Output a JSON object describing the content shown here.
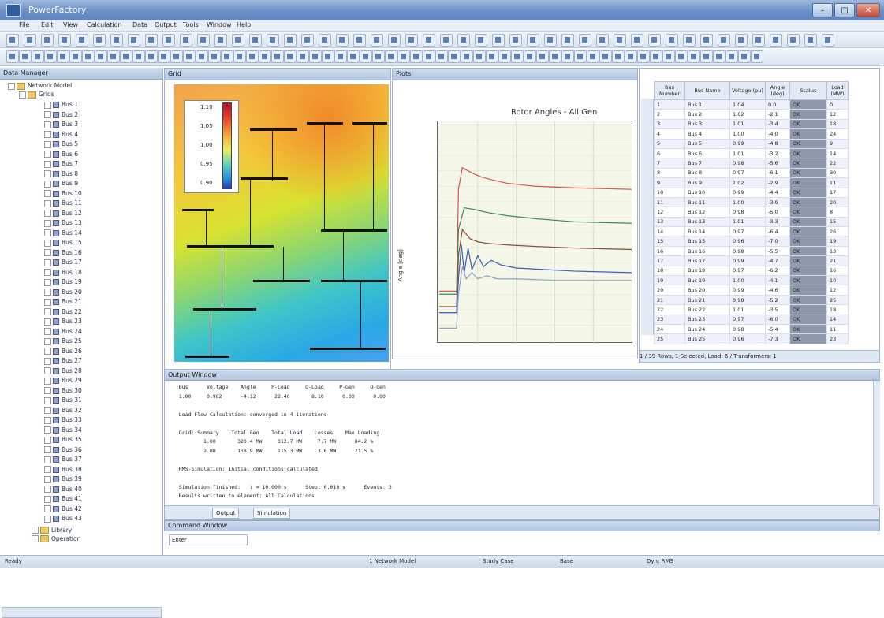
{
  "window": {
    "title": "PowerFactory",
    "minimize": "–",
    "maximize": "□",
    "close": "✕"
  },
  "menu": [
    "File",
    "Edit",
    "View",
    "Calculation",
    "Data",
    "Output",
    "Tools",
    "Window",
    "Help"
  ],
  "left_panel": {
    "title": "Data Manager",
    "root": "Network Model",
    "group": "Grids",
    "items": [
      "Bus 1",
      "Bus 2",
      "Bus 3",
      "Bus 4",
      "Bus 5",
      "Bus 6",
      "Bus 7",
      "Bus 8",
      "Bus 9",
      "Bus 10",
      "Bus 11",
      "Bus 12",
      "Bus 13",
      "Bus 14",
      "Bus 15",
      "Bus 16",
      "Bus 17",
      "Bus 18",
      "Bus 19",
      "Bus 20",
      "Bus 21",
      "Bus 22",
      "Bus 23",
      "Bus 24",
      "Bus 25",
      "Bus 26",
      "Bus 27",
      "Bus 28",
      "Bus 29",
      "Bus 30",
      "Bus 31",
      "Bus 32",
      "Bus 33",
      "Bus 34",
      "Bus 35",
      "Bus 36",
      "Bus 37",
      "Bus 38",
      "Bus 39",
      "Bus 40",
      "Bus 41",
      "Bus 42",
      "Bus 43"
    ],
    "footer_items": [
      "Library",
      "Operation"
    ]
  },
  "diagram": {
    "tab": "Grid",
    "colorbar_ticks": [
      "1.10",
      "1.05",
      "1.00",
      "0.95",
      "0.90"
    ]
  },
  "chart": {
    "tab": "Plots",
    "title": "Rotor Angles - All Gen",
    "ylabel": "Angle [deg]"
  },
  "chart_data": {
    "type": "line",
    "title": "Rotor Angles - All Gen",
    "ylabel": "Angle [deg]",
    "xlabel": "",
    "xlim": [
      0,
      10
    ],
    "ylim": [
      0,
      140
    ],
    "series": [
      {
        "color": "#d9534f",
        "x": [
          0,
          0.9,
          1.0,
          1.2,
          1.5,
          1.8,
          2.2,
          2.8,
          3.5,
          5,
          7,
          10
        ],
        "y": [
          32,
          32,
          98,
          112,
          110,
          108,
          106,
          104,
          102,
          100,
          99,
          98
        ]
      },
      {
        "color": "#3c8a5a",
        "x": [
          0,
          0.9,
          1.0,
          1.3,
          1.8,
          2.5,
          3.5,
          5,
          7,
          10
        ],
        "y": [
          30,
          30,
          72,
          86,
          85,
          83,
          81,
          79,
          77,
          76
        ]
      },
      {
        "color": "#8b4a3a",
        "x": [
          0,
          0.9,
          1.0,
          1.2,
          1.6,
          2.0,
          2.5,
          3.5,
          5,
          7,
          10
        ],
        "y": [
          22,
          22,
          55,
          72,
          66,
          64,
          63,
          62,
          61,
          60,
          59
        ]
      },
      {
        "color": "#3a5fb4",
        "x": [
          0,
          0.9,
          1.0,
          1.15,
          1.3,
          1.5,
          1.7,
          2.0,
          2.3,
          2.7,
          3.2,
          4,
          5.5,
          7,
          10
        ],
        "y": [
          18,
          18,
          40,
          62,
          44,
          60,
          46,
          55,
          48,
          52,
          49,
          47,
          46,
          45,
          44
        ]
      },
      {
        "color": "#8fa0c8",
        "x": [
          0,
          0.9,
          1.0,
          1.2,
          1.4,
          1.7,
          2.0,
          2.5,
          3,
          4,
          6,
          10
        ],
        "y": [
          8,
          8,
          30,
          48,
          40,
          44,
          40,
          42,
          40,
          40,
          39,
          39
        ]
      }
    ]
  },
  "table": {
    "headers": [
      "Bus Number",
      "Bus Name",
      "Voltage (pu)",
      "Angle (deg)",
      "Status",
      "Load (MW)"
    ],
    "rows": [
      [
        "1",
        "Bus 1",
        "1.04",
        "0.0",
        "OK",
        "0"
      ],
      [
        "2",
        "Bus 2",
        "1.02",
        "-2.1",
        "OK",
        "12"
      ],
      [
        "3",
        "Bus 3",
        "1.01",
        "-3.4",
        "OK",
        "18"
      ],
      [
        "4",
        "Bus 4",
        "1.00",
        "-4.0",
        "OK",
        "24"
      ],
      [
        "5",
        "Bus 5",
        "0.99",
        "-4.8",
        "OK",
        "9"
      ],
      [
        "6",
        "Bus 6",
        "1.01",
        "-3.2",
        "OK",
        "14"
      ],
      [
        "7",
        "Bus 7",
        "0.98",
        "-5.6",
        "OK",
        "22"
      ],
      [
        "8",
        "Bus 8",
        "0.97",
        "-6.1",
        "OK",
        "30"
      ],
      [
        "9",
        "Bus 9",
        "1.02",
        "-2.9",
        "OK",
        "11"
      ],
      [
        "10",
        "Bus 10",
        "0.99",
        "-4.4",
        "OK",
        "17"
      ],
      [
        "11",
        "Bus 11",
        "1.00",
        "-3.9",
        "OK",
        "20"
      ],
      [
        "12",
        "Bus 12",
        "0.98",
        "-5.0",
        "OK",
        "8"
      ],
      [
        "13",
        "Bus 13",
        "1.01",
        "-3.3",
        "OK",
        "15"
      ],
      [
        "14",
        "Bus 14",
        "0.97",
        "-6.4",
        "OK",
        "26"
      ],
      [
        "15",
        "Bus 15",
        "0.96",
        "-7.0",
        "OK",
        "19"
      ],
      [
        "16",
        "Bus 16",
        "0.98",
        "-5.5",
        "OK",
        "13"
      ],
      [
        "17",
        "Bus 17",
        "0.99",
        "-4.7",
        "OK",
        "21"
      ],
      [
        "18",
        "Bus 18",
        "0.97",
        "-6.2",
        "OK",
        "16"
      ],
      [
        "19",
        "Bus 19",
        "1.00",
        "-4.1",
        "OK",
        "10"
      ],
      [
        "20",
        "Bus 20",
        "0.99",
        "-4.6",
        "OK",
        "12"
      ],
      [
        "21",
        "Bus 21",
        "0.98",
        "-5.2",
        "OK",
        "25"
      ],
      [
        "22",
        "Bus 22",
        "1.01",
        "-3.5",
        "OK",
        "18"
      ],
      [
        "23",
        "Bus 23",
        "0.97",
        "-6.0",
        "OK",
        "14"
      ],
      [
        "24",
        "Bus 24",
        "0.98",
        "-5.4",
        "OK",
        "11"
      ],
      [
        "25",
        "Bus 25",
        "0.96",
        "-7.3",
        "OK",
        "23"
      ]
    ],
    "status": "1 / 39 Rows, 1 Selected, Load: 6 / Transformers: 1"
  },
  "output": {
    "title": "Output Window",
    "lines": [
      "   Bus      Voltage    Angle     P-Load     Q-Load     P-Gen     Q-Gen",
      "   1.00     0.982      -4.12      22.40       8.10      0.00      0.00",
      "",
      "   Load Flow Calculation: converged in 4 iterations",
      "",
      "   Grid: Summary    Total Gen    Total Load    Losses    Max Loading",
      "           1.00       320.4 MW     312.7 MW     7.7 MW      84.2 %",
      "           2.00       118.9 MW     115.3 MW     3.6 MW      71.5 %",
      "",
      "   RMS-Simulation: Initial conditions calculated",
      "",
      "   Simulation finished:   t = 10.000 s      Step: 0.010 s      Events: 3",
      "   Results written to element: All Calculations"
    ],
    "tabs": [
      "Output",
      "Simulation"
    ]
  },
  "command": {
    "title": "Command Window",
    "input": "Enter"
  },
  "status": [
    "Ready",
    "1 Network Model",
    "Study Case",
    "Base",
    "Dyn: RMS"
  ]
}
